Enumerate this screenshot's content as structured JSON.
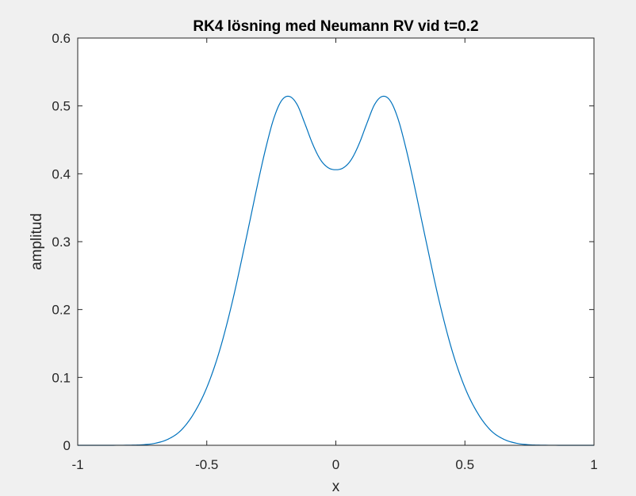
{
  "chart_data": {
    "type": "line",
    "title": "RK4 lösning med Neumann RV vid t=0.2",
    "xlabel": "x",
    "ylabel": "amplitud",
    "xlim": [
      -1,
      1
    ],
    "ylim": [
      0,
      0.6
    ],
    "xticks": [
      -1,
      -0.5,
      0,
      0.5,
      1
    ],
    "xtick_labels": [
      "-1",
      "-0.5",
      "0",
      "0.5",
      "1"
    ],
    "yticks": [
      0,
      0.1,
      0.2,
      0.3,
      0.4,
      0.5,
      0.6
    ],
    "ytick_labels": [
      "0",
      "0.1",
      "0.2",
      "0.3",
      "0.4",
      "0.5",
      "0.6"
    ],
    "grid": false,
    "box": true,
    "line_color": "#0072bd",
    "series": [
      {
        "x": [
          -1,
          -0.9,
          -0.8,
          -0.75,
          -0.7,
          -0.65,
          -0.6,
          -0.55,
          -0.5,
          -0.45,
          -0.4,
          -0.35,
          -0.3,
          -0.27,
          -0.24,
          -0.21,
          -0.18,
          -0.15,
          -0.12,
          -0.09,
          -0.06,
          -0.03,
          0,
          0.03,
          0.06,
          0.09,
          0.12,
          0.15,
          0.18,
          0.21,
          0.24,
          0.27,
          0.3,
          0.35,
          0.4,
          0.45,
          0.5,
          0.55,
          0.6,
          0.65,
          0.7,
          0.75,
          0.8,
          0.9,
          1
        ],
        "y": [
          0,
          0,
          0.0002,
          0.0008,
          0.003,
          0.009,
          0.022,
          0.047,
          0.085,
          0.14,
          0.213,
          0.3,
          0.39,
          0.44,
          0.482,
          0.508,
          0.514,
          0.502,
          0.474,
          0.444,
          0.421,
          0.409,
          0.406,
          0.409,
          0.421,
          0.444,
          0.474,
          0.502,
          0.514,
          0.508,
          0.482,
          0.44,
          0.39,
          0.3,
          0.213,
          0.14,
          0.085,
          0.047,
          0.022,
          0.009,
          0.003,
          0.0008,
          0.0002,
          0,
          0
        ]
      }
    ]
  }
}
